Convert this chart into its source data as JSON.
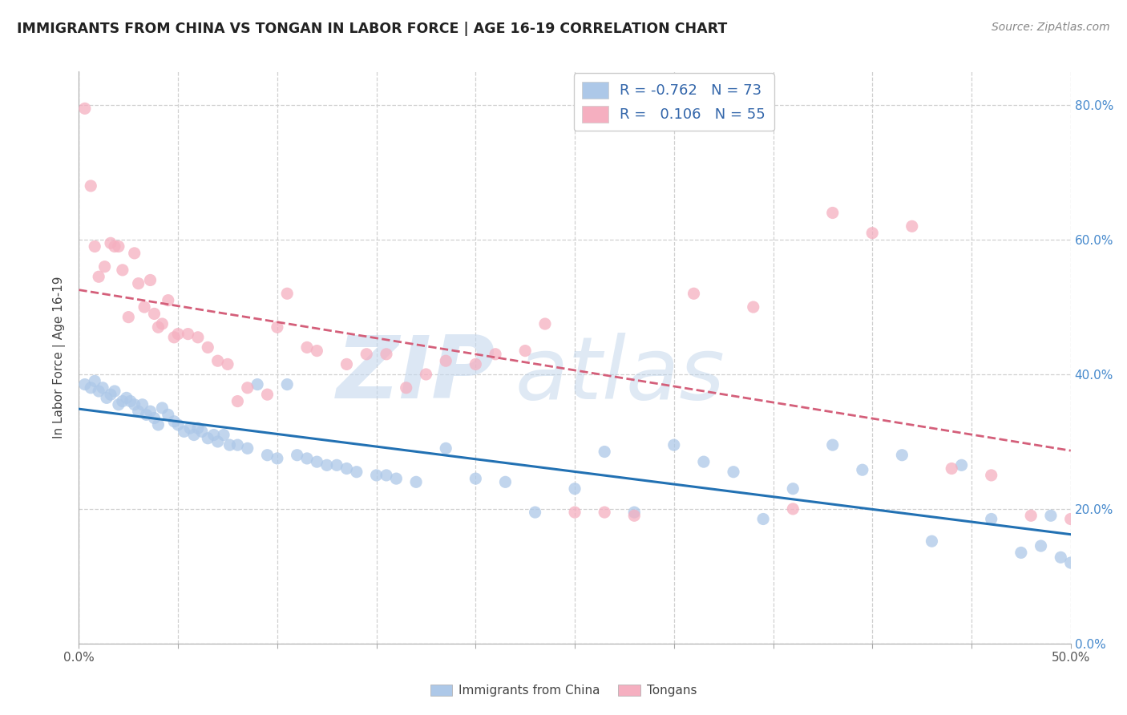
{
  "title": "IMMIGRANTS FROM CHINA VS TONGAN IN LABOR FORCE | AGE 16-19 CORRELATION CHART",
  "source": "Source: ZipAtlas.com",
  "ylabel": "In Labor Force | Age 16-19",
  "xlim": [
    0.0,
    0.5
  ],
  "ylim": [
    0.0,
    0.85
  ],
  "xticks": [
    0.0,
    0.05,
    0.1,
    0.15,
    0.2,
    0.25,
    0.3,
    0.35,
    0.4,
    0.45,
    0.5
  ],
  "yticks": [
    0.0,
    0.2,
    0.4,
    0.6,
    0.8
  ],
  "china_R": "-0.762",
  "china_N": "73",
  "tongan_R": "0.106",
  "tongan_N": "55",
  "china_color": "#adc8e8",
  "china_line_color": "#2271b3",
  "tongan_color": "#f5afc0",
  "tongan_line_color": "#d45f7a",
  "watermark_zip": "ZIP",
  "watermark_atlas": "atlas",
  "china_scatter_x": [
    0.003,
    0.006,
    0.008,
    0.01,
    0.012,
    0.014,
    0.016,
    0.018,
    0.02,
    0.022,
    0.024,
    0.026,
    0.028,
    0.03,
    0.032,
    0.034,
    0.036,
    0.038,
    0.04,
    0.042,
    0.045,
    0.048,
    0.05,
    0.053,
    0.056,
    0.058,
    0.06,
    0.062,
    0.065,
    0.068,
    0.07,
    0.073,
    0.076,
    0.08,
    0.085,
    0.09,
    0.095,
    0.1,
    0.105,
    0.11,
    0.115,
    0.12,
    0.125,
    0.13,
    0.135,
    0.14,
    0.15,
    0.155,
    0.16,
    0.17,
    0.185,
    0.2,
    0.215,
    0.23,
    0.25,
    0.265,
    0.28,
    0.3,
    0.315,
    0.33,
    0.345,
    0.36,
    0.38,
    0.395,
    0.415,
    0.43,
    0.445,
    0.46,
    0.475,
    0.485,
    0.49,
    0.495,
    0.5
  ],
  "china_scatter_y": [
    0.385,
    0.38,
    0.39,
    0.375,
    0.38,
    0.365,
    0.37,
    0.375,
    0.355,
    0.36,
    0.365,
    0.36,
    0.355,
    0.345,
    0.355,
    0.34,
    0.345,
    0.335,
    0.325,
    0.35,
    0.34,
    0.33,
    0.325,
    0.315,
    0.32,
    0.31,
    0.32,
    0.315,
    0.305,
    0.31,
    0.3,
    0.31,
    0.295,
    0.295,
    0.29,
    0.385,
    0.28,
    0.275,
    0.385,
    0.28,
    0.275,
    0.27,
    0.265,
    0.265,
    0.26,
    0.255,
    0.25,
    0.25,
    0.245,
    0.24,
    0.29,
    0.245,
    0.24,
    0.195,
    0.23,
    0.285,
    0.195,
    0.295,
    0.27,
    0.255,
    0.185,
    0.23,
    0.295,
    0.258,
    0.28,
    0.152,
    0.265,
    0.185,
    0.135,
    0.145,
    0.19,
    0.128,
    0.12
  ],
  "tongan_scatter_x": [
    0.003,
    0.006,
    0.008,
    0.01,
    0.013,
    0.016,
    0.018,
    0.02,
    0.022,
    0.025,
    0.028,
    0.03,
    0.033,
    0.036,
    0.038,
    0.04,
    0.042,
    0.045,
    0.048,
    0.05,
    0.055,
    0.06,
    0.065,
    0.07,
    0.075,
    0.08,
    0.085,
    0.095,
    0.1,
    0.105,
    0.115,
    0.12,
    0.135,
    0.145,
    0.155,
    0.165,
    0.175,
    0.185,
    0.2,
    0.21,
    0.225,
    0.235,
    0.25,
    0.265,
    0.28,
    0.31,
    0.34,
    0.36,
    0.38,
    0.4,
    0.42,
    0.44,
    0.46,
    0.48,
    0.5
  ],
  "tongan_scatter_y": [
    0.795,
    0.68,
    0.59,
    0.545,
    0.56,
    0.595,
    0.59,
    0.59,
    0.555,
    0.485,
    0.58,
    0.535,
    0.5,
    0.54,
    0.49,
    0.47,
    0.475,
    0.51,
    0.455,
    0.46,
    0.46,
    0.455,
    0.44,
    0.42,
    0.415,
    0.36,
    0.38,
    0.37,
    0.47,
    0.52,
    0.44,
    0.435,
    0.415,
    0.43,
    0.43,
    0.38,
    0.4,
    0.42,
    0.415,
    0.43,
    0.435,
    0.475,
    0.195,
    0.195,
    0.19,
    0.52,
    0.5,
    0.2,
    0.64,
    0.61,
    0.62,
    0.26,
    0.25,
    0.19,
    0.185
  ]
}
